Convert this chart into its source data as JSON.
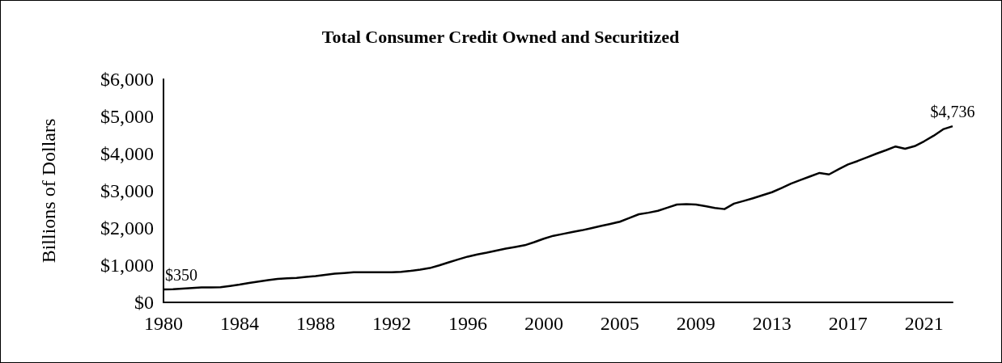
{
  "chart_data": {
    "type": "line",
    "title": "Total Consumer Credit Owned and Securitized",
    "ylabel": "Billions of Dollars",
    "categories": [
      "1980",
      null,
      null,
      null,
      null,
      null,
      null,
      null,
      "1984",
      null,
      null,
      null,
      null,
      null,
      null,
      null,
      "1988",
      null,
      null,
      null,
      null,
      null,
      null,
      null,
      "1992",
      null,
      null,
      null,
      null,
      null,
      null,
      null,
      "1996",
      null,
      null,
      null,
      null,
      null,
      null,
      null,
      "2000",
      null,
      null,
      null,
      null,
      null,
      null,
      null,
      "2005",
      null,
      null,
      null,
      null,
      null,
      null,
      null,
      "2009",
      null,
      null,
      null,
      null,
      null,
      null,
      null,
      "2013",
      null,
      null,
      null,
      null,
      null,
      null,
      null,
      "2017",
      null,
      null,
      null,
      null,
      null,
      null,
      null,
      "2021",
      null,
      null,
      null
    ],
    "series": [
      {
        "color": "#000000",
        "values": [
          350,
          355,
          369,
          385,
          400,
          404,
          408,
          440,
          477,
          520,
          560,
          598,
          630,
          648,
          660,
          684,
          707,
          740,
          770,
          790,
          808,
          812,
          808,
          808,
          808,
          820,
          846,
          880,
          922,
          995,
          1077,
          1155,
          1230,
          1290,
          1336,
          1390,
          1444,
          1490,
          1536,
          1620,
          1713,
          1790,
          1840,
          1890,
          1938,
          1995,
          2054,
          2110,
          2169,
          2270,
          2369,
          2410,
          2462,
          2545,
          2631,
          2640,
          2631,
          2585,
          2538,
          2508,
          2654,
          2725,
          2800,
          2880,
          2962,
          3075,
          3192,
          3290,
          3385,
          3480,
          3440,
          3580,
          3708,
          3800,
          3900,
          4000,
          4092,
          4192,
          4130,
          4200,
          4331,
          4480,
          4654,
          4736
        ],
        "value_labels": [
          "$350",
          null,
          null,
          null,
          null,
          null,
          null,
          null,
          null,
          null,
          null,
          null,
          null,
          null,
          null,
          null,
          null,
          null,
          null,
          null,
          null,
          null,
          null,
          null,
          null,
          null,
          null,
          null,
          null,
          null,
          null,
          null,
          null,
          null,
          null,
          null,
          null,
          null,
          null,
          null,
          null,
          null,
          null,
          null,
          null,
          null,
          null,
          null,
          null,
          null,
          null,
          null,
          null,
          null,
          null,
          null,
          null,
          null,
          null,
          null,
          null,
          null,
          null,
          null,
          null,
          null,
          null,
          null,
          null,
          null,
          null,
          null,
          null,
          null,
          null,
          null,
          null,
          null,
          null,
          null,
          null,
          null,
          null,
          "$4,736"
        ]
      }
    ],
    "ylim": [
      0,
      6000
    ],
    "yticks": [
      {
        "value": 0,
        "label": "$0"
      },
      {
        "value": 1000,
        "label": "$1,000"
      },
      {
        "value": 2000,
        "label": "$2,000"
      },
      {
        "value": 3000,
        "label": "$3,000"
      },
      {
        "value": 4000,
        "label": "$4,000"
      },
      {
        "value": 5000,
        "label": "$5,000"
      },
      {
        "value": 6000,
        "label": "$6,000"
      }
    ],
    "grid": false
  }
}
